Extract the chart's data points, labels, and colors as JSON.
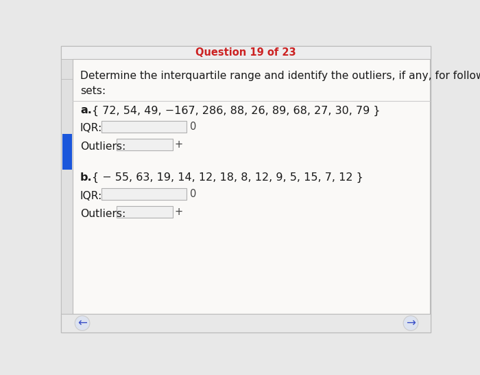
{
  "header_text": "Question 19 of 23",
  "header_color": "#cc2222",
  "question_text": "Determine the interquartile range and identify the outliers, if any, for following the data\nsets:",
  "part_a_label": "a.",
  "part_a_set": "{ 72, 54, 49, −167, 286, 88, 26, 89, 68, 27, 30, 79 }",
  "part_b_label": "b.",
  "part_b_set": "{ − 55, 63, 19, 14, 12, 18, 8, 12, 9, 5, 15, 7, 12 }",
  "iqr_label": "IQR:",
  "outliers_label": "Outliers:",
  "zero_label": "0",
  "plus_label": "+",
  "outer_bg": "#e8e8e8",
  "header_bg": "#ededee",
  "box_bg": "#f0f0f0",
  "box_border": "#b0b0b0",
  "left_sidebar_bg": "#e0e0e0",
  "left_accent_color": "#1a56db",
  "arrow_color": "#3a4fc7",
  "arrow_circle_color": "#dde3f0",
  "content_bg": "#faf9f7",
  "divider_color": "#cccccc",
  "text_color": "#1a1a1a",
  "footer_bg": "#e8e8e8"
}
